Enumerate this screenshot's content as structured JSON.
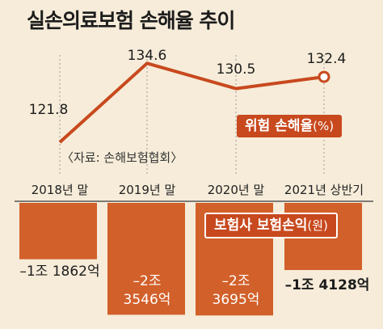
{
  "title": "실손의료보험 손해율 추이",
  "source": "〈자료: 손해보험협회〉",
  "legend": {
    "rate": "위험 손해율",
    "rate_unit": "(%)",
    "loss": "보험사 보험손익",
    "loss_unit": "(원)"
  },
  "colors": {
    "line": "#c8491e",
    "bar": "#d2602a",
    "background": "#f6ecd9",
    "baseline": "#555555"
  },
  "chart_data": [
    {
      "type": "line",
      "categories": [
        "2018년 말",
        "2019년 말",
        "2020년 말",
        "2021년 상반기"
      ],
      "series": [
        {
          "name": "위험 손해율(%)",
          "values": [
            121.8,
            134.6,
            130.5,
            132.4
          ]
        }
      ],
      "value_labels": [
        "121.8",
        "134.6",
        "130.5",
        "132.4"
      ],
      "ylim": [
        118,
        137
      ],
      "highlight_last_point": true
    },
    {
      "type": "bar",
      "categories": [
        "2018년 말",
        "2019년 말",
        "2020년 말",
        "2021년 상반기"
      ],
      "series": [
        {
          "name": "보험사 보험손익(원)",
          "values": [
            -11862,
            -23546,
            -23695,
            -14128
          ]
        }
      ],
      "unit": "억원",
      "value_labels": [
        [
          "–1조 1862억"
        ],
        [
          "–2조",
          "3546억"
        ],
        [
          "–2조",
          "3695억"
        ],
        [
          "–1조 4128억"
        ]
      ],
      "ylim": [
        -24500,
        0
      ]
    }
  ]
}
